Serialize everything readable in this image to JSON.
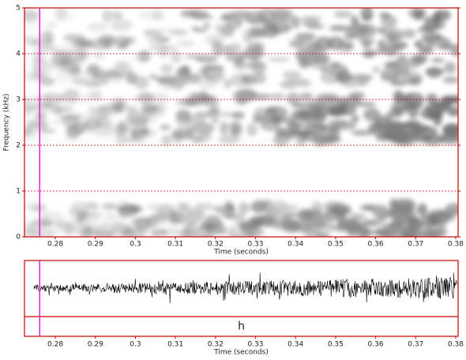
{
  "chart_data": [
    {
      "type": "spectrogram",
      "xlabel": "Time (seconds)",
      "ylabel": "Frequency (kHz)",
      "xlim": [
        0.2723,
        0.3806
      ],
      "xticks": [
        0.28,
        0.29,
        0.3,
        0.31,
        0.32,
        0.33,
        0.34,
        0.35,
        0.36,
        0.37,
        0.38
      ],
      "ylim": [
        0,
        5
      ],
      "yticks": [
        0,
        1,
        2,
        3,
        4,
        5
      ],
      "grid": true,
      "grid_color": "#cc0000",
      "cursor": 0.2761,
      "cursor_color": "#e020e0"
    },
    {
      "type": "waveform",
      "xlabel": "Time (seconds)",
      "xlim": [
        0.2723,
        0.3806
      ],
      "xticks": [
        0.28,
        0.29,
        0.3,
        0.31,
        0.32,
        0.33,
        0.34,
        0.35,
        0.36,
        0.37,
        0.38
      ],
      "cursor": 0.2761,
      "cursor_color": "#e020e0",
      "annotation": "h"
    }
  ]
}
